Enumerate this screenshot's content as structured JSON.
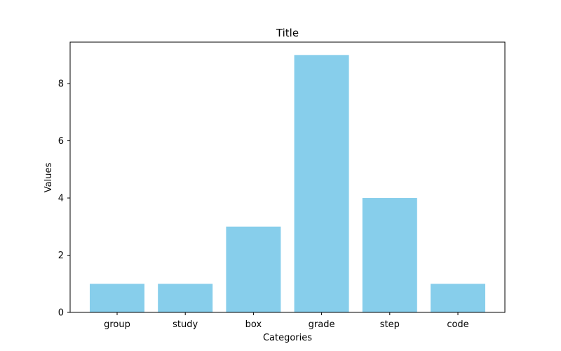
{
  "chart_data": {
    "type": "bar",
    "title": "Title",
    "xlabel": "Categories",
    "ylabel": "Values",
    "categories": [
      "group",
      "study",
      "box",
      "grade",
      "step",
      "code"
    ],
    "values": [
      1,
      1,
      3,
      9,
      4,
      1
    ],
    "ylim": [
      0,
      9.45
    ],
    "yticks": [
      0,
      2,
      4,
      6,
      8
    ],
    "grid": false,
    "legend": "none",
    "bar_color": "#87CEEB",
    "axis_color": "#000000"
  }
}
